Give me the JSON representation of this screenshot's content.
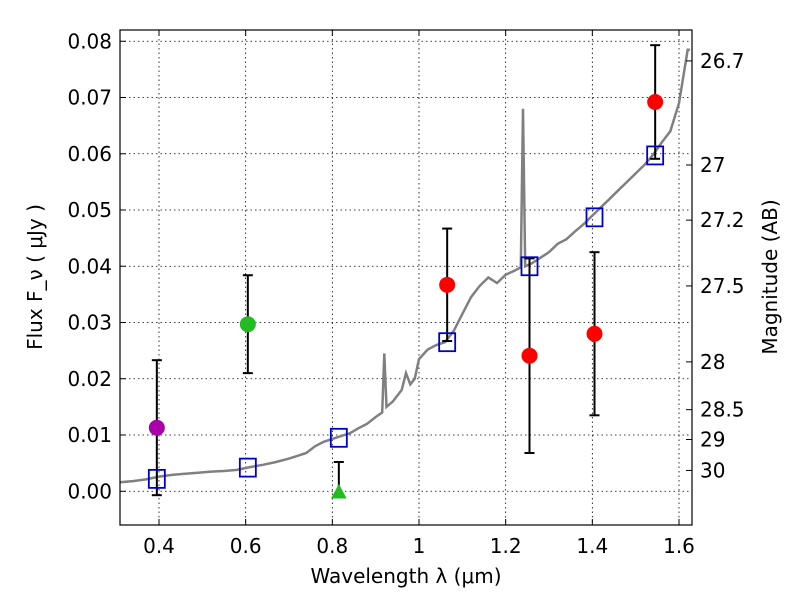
{
  "chart_data": {
    "type": "scatter",
    "title": "",
    "xlabel": "Wavelength  λ (μm)",
    "ylabel": "Flux  F_ν  ( μJy )",
    "ylabel_right": "Magnitude (AB)",
    "xlim": [
      0.31,
      1.63
    ],
    "ylim": [
      -0.006,
      0.082
    ],
    "grid": true,
    "x_ticks": [
      {
        "value": 0.4,
        "label": "0.4"
      },
      {
        "value": 0.6,
        "label": "0.6"
      },
      {
        "value": 0.8,
        "label": "0.8"
      },
      {
        "value": 1.0,
        "label": "1"
      },
      {
        "value": 1.2,
        "label": "1.2"
      },
      {
        "value": 1.4,
        "label": "1.4"
      },
      {
        "value": 1.6,
        "label": "1.6"
      }
    ],
    "y_ticks": [
      {
        "value": 0.0,
        "label": "0.00"
      },
      {
        "value": 0.01,
        "label": "0.01"
      },
      {
        "value": 0.02,
        "label": "0.02"
      },
      {
        "value": 0.03,
        "label": "0.03"
      },
      {
        "value": 0.04,
        "label": "0.04"
      },
      {
        "value": 0.05,
        "label": "0.05"
      },
      {
        "value": 0.06,
        "label": "0.06"
      },
      {
        "value": 0.07,
        "label": "0.07"
      },
      {
        "value": 0.08,
        "label": "0.08"
      }
    ],
    "right_ticks": [
      {
        "label": "26.7",
        "flux": 0.0765
      },
      {
        "label": "27",
        "flux": 0.058
      },
      {
        "label": "27.2",
        "flux": 0.0482
      },
      {
        "label": "27.5",
        "flux": 0.0365
      },
      {
        "label": "28",
        "flux": 0.023
      },
      {
        "label": "28.5",
        "flux": 0.0145
      },
      {
        "label": "29",
        "flux": 0.0092
      },
      {
        "label": "30",
        "flux": 0.0037
      }
    ],
    "series": [
      {
        "name": "template-spectrum",
        "kind": "line",
        "color": "#808080",
        "points": [
          [
            0.31,
            0.0016
          ],
          [
            0.34,
            0.0018
          ],
          [
            0.37,
            0.0021
          ],
          [
            0.4,
            0.0026
          ],
          [
            0.43,
            0.0029
          ],
          [
            0.46,
            0.0031
          ],
          [
            0.49,
            0.0033
          ],
          [
            0.52,
            0.0035
          ],
          [
            0.55,
            0.0036
          ],
          [
            0.58,
            0.0038
          ],
          [
            0.61,
            0.0043
          ],
          [
            0.64,
            0.0047
          ],
          [
            0.67,
            0.0052
          ],
          [
            0.7,
            0.0058
          ],
          [
            0.72,
            0.0063
          ],
          [
            0.74,
            0.0068
          ],
          [
            0.76,
            0.008
          ],
          [
            0.78,
            0.0088
          ],
          [
            0.8,
            0.0093
          ],
          [
            0.82,
            0.0098
          ],
          [
            0.84,
            0.0103
          ],
          [
            0.86,
            0.0112
          ],
          [
            0.88,
            0.012
          ],
          [
            0.9,
            0.0132
          ],
          [
            0.915,
            0.014
          ],
          [
            0.92,
            0.0245
          ],
          [
            0.925,
            0.015
          ],
          [
            0.94,
            0.016
          ],
          [
            0.96,
            0.018
          ],
          [
            0.97,
            0.021
          ],
          [
            0.98,
            0.019
          ],
          [
            0.99,
            0.02
          ],
          [
            1.0,
            0.0235
          ],
          [
            1.02,
            0.0252
          ],
          [
            1.04,
            0.026
          ],
          [
            1.06,
            0.0265
          ],
          [
            1.08,
            0.0285
          ],
          [
            1.1,
            0.0315
          ],
          [
            1.12,
            0.0345
          ],
          [
            1.14,
            0.0365
          ],
          [
            1.16,
            0.038
          ],
          [
            1.18,
            0.037
          ],
          [
            1.2,
            0.0385
          ],
          [
            1.22,
            0.0392
          ],
          [
            1.235,
            0.0398
          ],
          [
            1.24,
            0.068
          ],
          [
            1.245,
            0.04
          ],
          [
            1.26,
            0.0405
          ],
          [
            1.28,
            0.0415
          ],
          [
            1.3,
            0.0425
          ],
          [
            1.32,
            0.044
          ],
          [
            1.34,
            0.0448
          ],
          [
            1.36,
            0.0462
          ],
          [
            1.38,
            0.0475
          ],
          [
            1.4,
            0.049
          ],
          [
            1.42,
            0.0505
          ],
          [
            1.44,
            0.052
          ],
          [
            1.46,
            0.0535
          ],
          [
            1.48,
            0.055
          ],
          [
            1.5,
            0.0565
          ],
          [
            1.52,
            0.058
          ],
          [
            1.54,
            0.0598
          ],
          [
            1.56,
            0.062
          ],
          [
            1.58,
            0.064
          ],
          [
            1.6,
            0.069
          ],
          [
            1.62,
            0.0785
          ],
          [
            1.625,
            0.0785
          ]
        ]
      },
      {
        "name": "model-photometry",
        "kind": "open-square",
        "color": "#0000cc",
        "points": [
          [
            0.395,
            0.0022
          ],
          [
            0.605,
            0.0042
          ],
          [
            0.815,
            0.0095
          ],
          [
            1.065,
            0.0265
          ],
          [
            1.255,
            0.04
          ],
          [
            1.405,
            0.0487
          ],
          [
            1.545,
            0.0597
          ]
        ]
      },
      {
        "name": "observed-photometry",
        "kind": "filled-circle",
        "points": [
          {
            "x": 0.395,
            "y": 0.0113,
            "err": 0.012,
            "color": "#aa00aa"
          },
          {
            "x": 0.605,
            "y": 0.0297,
            "err": 0.0087,
            "color": "#22bb22"
          },
          {
            "x": 1.065,
            "y": 0.0367,
            "err": 0.01,
            "color": "#ff0000"
          },
          {
            "x": 1.255,
            "y": 0.0241,
            "err": 0.0173,
            "color": "#ff0000"
          },
          {
            "x": 1.405,
            "y": 0.028,
            "err": 0.0145,
            "color": "#ff0000"
          },
          {
            "x": 1.545,
            "y": 0.0692,
            "err": 0.0101,
            "color": "#ff0000"
          }
        ]
      },
      {
        "name": "upper-limit",
        "kind": "triangle",
        "points": [
          {
            "x": 0.815,
            "y": -0.0003,
            "err_up": 0.0055,
            "color": "#22bb22"
          }
        ]
      }
    ]
  }
}
